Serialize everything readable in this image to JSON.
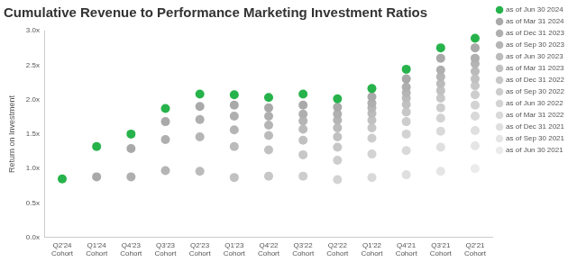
{
  "chart_data": {
    "type": "scatter",
    "title": "Cumulative Revenue to Performance Marketing Investment Ratios",
    "y_label": "Return on Investment",
    "categories": [
      "Q2'24 Cohort",
      "Q1'24 Cohort",
      "Q4'23 Cohort",
      "Q3'23 Cohort",
      "Q2'23 Cohort",
      "Q1'23 Cohort",
      "Q4'22 Cohort",
      "Q3'22 Cohort",
      "Q2'22 Cohort",
      "Q1'22 Cohort",
      "Q4'21 Cohort",
      "Q3'21 Cohort",
      "Q2'21 Cohort"
    ],
    "series": [
      {
        "name": "as of Jun 30 2024",
        "color": "#27b34b",
        "values": [
          0.85,
          1.32,
          1.5,
          1.87,
          2.08,
          2.07,
          2.03,
          2.08,
          2.01,
          2.16,
          2.44,
          2.75,
          2.89
        ]
      },
      {
        "name": "as of Mar 31 2024",
        "color": "#a9a9a9",
        "values": [
          null,
          0.88,
          1.29,
          1.68,
          1.9,
          1.92,
          1.88,
          1.92,
          1.89,
          2.04,
          2.3,
          2.6,
          2.75
        ]
      },
      {
        "name": "as of Dec 31 2023",
        "color": "#afafaf",
        "values": [
          null,
          null,
          0.88,
          1.42,
          1.71,
          1.76,
          1.76,
          1.79,
          1.79,
          1.95,
          2.18,
          2.43,
          2.6
        ]
      },
      {
        "name": "as of Sep 30 2023",
        "color": "#b5b5b5",
        "values": [
          null,
          null,
          null,
          0.97,
          1.46,
          1.56,
          1.63,
          1.69,
          1.7,
          1.88,
          2.1,
          2.33,
          2.52
        ]
      },
      {
        "name": "as of Jun 30 2023",
        "color": "#bbbbbb",
        "values": [
          null,
          null,
          null,
          null,
          0.96,
          1.32,
          1.48,
          1.57,
          1.59,
          1.8,
          2.02,
          2.23,
          2.41
        ]
      },
      {
        "name": "as of Mar 31 2023",
        "color": "#c1c1c1",
        "values": [
          null,
          null,
          null,
          null,
          null,
          0.87,
          1.27,
          1.41,
          1.46,
          1.7,
          1.93,
          2.13,
          2.3
        ]
      },
      {
        "name": "as of Dec 31 2022",
        "color": "#c7c7c7",
        "values": [
          null,
          null,
          null,
          null,
          null,
          null,
          0.89,
          1.2,
          1.31,
          1.59,
          1.82,
          2.02,
          2.2
        ]
      },
      {
        "name": "as of Sep 30 2022",
        "color": "#cdcdcd",
        "values": [
          null,
          null,
          null,
          null,
          null,
          null,
          null,
          0.89,
          1.12,
          1.44,
          1.68,
          1.88,
          2.07
        ]
      },
      {
        "name": "as of Jun 30 2022",
        "color": "#d3d3d3",
        "values": [
          null,
          null,
          null,
          null,
          null,
          null,
          null,
          null,
          0.84,
          1.21,
          1.5,
          1.73,
          1.92
        ]
      },
      {
        "name": "as of Mar 31 2022",
        "color": "#d9d9d9",
        "values": [
          null,
          null,
          null,
          null,
          null,
          null,
          null,
          null,
          null,
          0.87,
          1.26,
          1.54,
          1.76
        ]
      },
      {
        "name": "as of Dec 31 2021",
        "color": "#dfdfdf",
        "values": [
          null,
          null,
          null,
          null,
          null,
          null,
          null,
          null,
          null,
          null,
          0.91,
          1.31,
          1.55
        ]
      },
      {
        "name": "as of Sep 30 2021",
        "color": "#e5e5e5",
        "values": [
          null,
          null,
          null,
          null,
          null,
          null,
          null,
          null,
          null,
          null,
          null,
          0.96,
          1.33
        ]
      },
      {
        "name": "as of Jun 30 2021",
        "color": "#ebebeb",
        "values": [
          null,
          null,
          null,
          null,
          null,
          null,
          null,
          null,
          null,
          null,
          null,
          null,
          1.0
        ]
      }
    ],
    "ylim": [
      0,
      3
    ],
    "yticks": [
      {
        "value": 0,
        "label": "0.0x"
      },
      {
        "value": 0.5,
        "label": "0.5x"
      },
      {
        "value": 1,
        "label": "1.0x"
      },
      {
        "value": 1.5,
        "label": "1.5x"
      },
      {
        "value": 2,
        "label": "2.0x"
      },
      {
        "value": 2.5,
        "label": "2.5x"
      },
      {
        "value": 3,
        "label": "3.0x"
      }
    ],
    "grid": false,
    "legend": "right",
    "marker": "circle"
  }
}
